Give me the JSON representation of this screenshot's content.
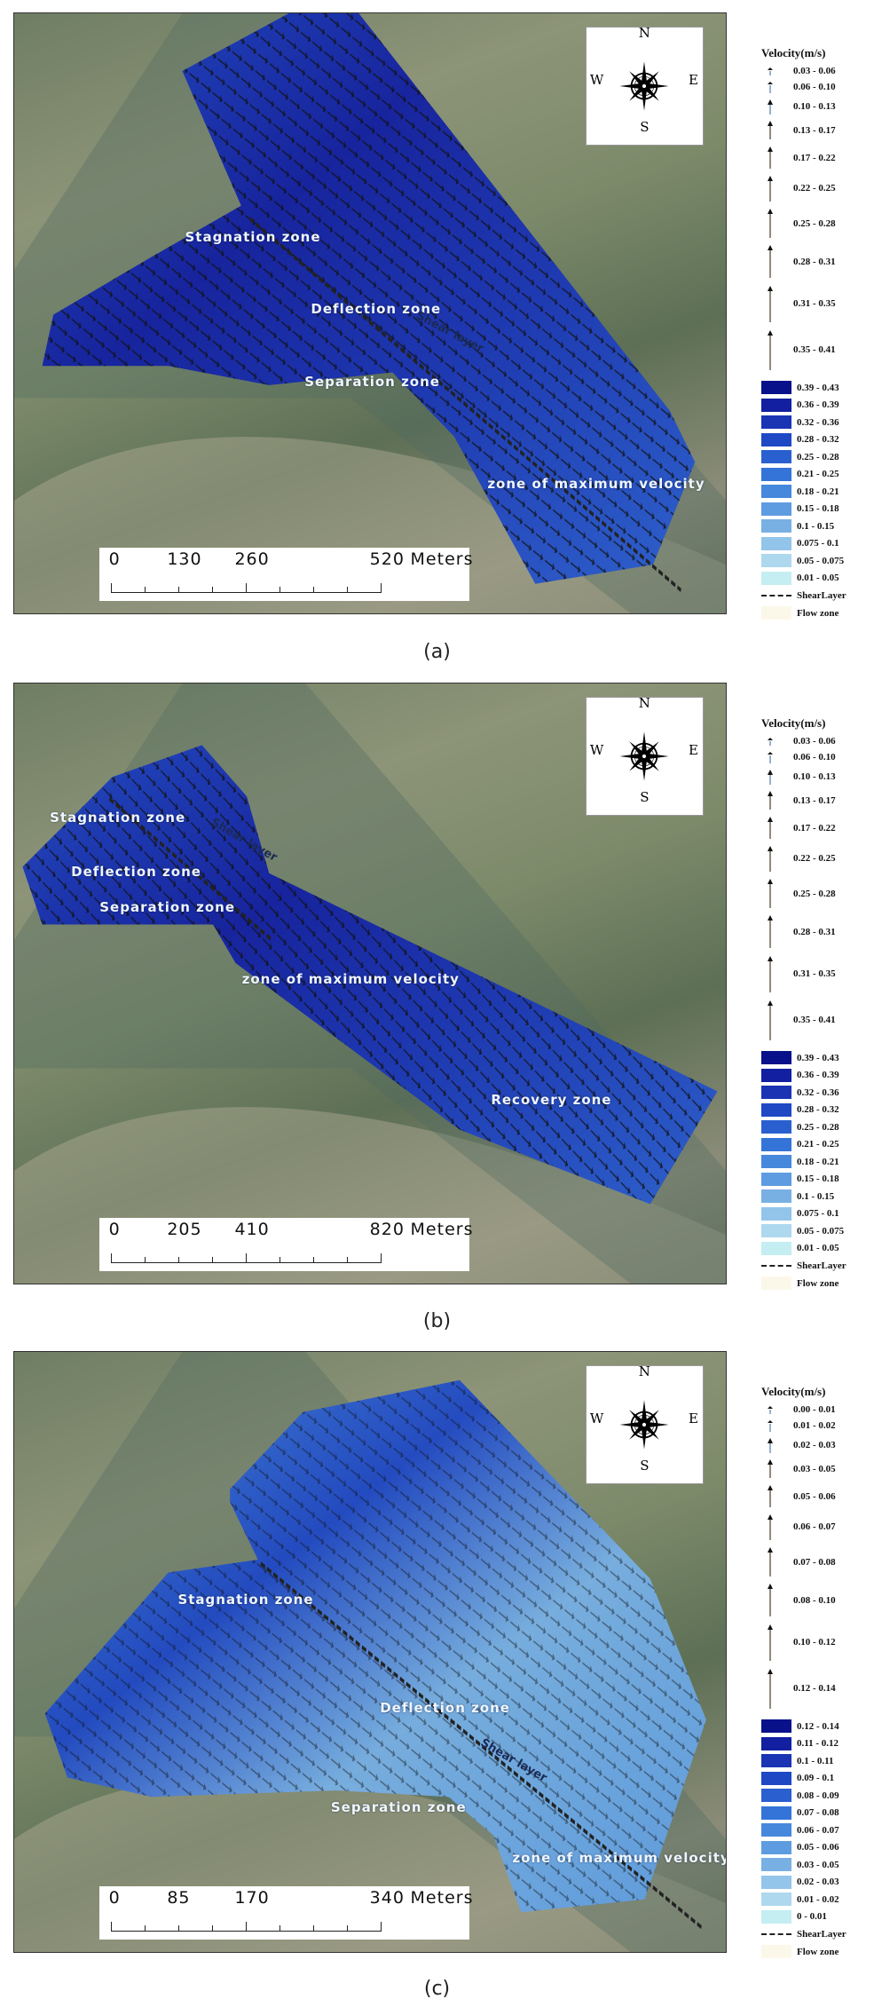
{
  "panels": [
    {
      "caption": "(a)",
      "zones": [
        "Stagnation zone",
        "Deflection zone",
        "Separation zone",
        "zone of maximum velocity"
      ],
      "shear_label": "Shear layer",
      "compass": {
        "n": "N",
        "s": "S",
        "e": "E",
        "w": "W"
      },
      "scale": {
        "ticks": [
          "0",
          "130",
          "260",
          "520"
        ],
        "unit": "Meters"
      },
      "legend": {
        "title": "Velocity(m/s)",
        "arrow_classes": [
          "0.03 - 0.06",
          "0.06 - 0.10",
          "0.10 - 0.13",
          "0.13 - 0.17",
          "0.17 - 0.22",
          "0.22 - 0.25",
          "0.25 - 0.28",
          "0.28 - 0.31",
          "0.31 - 0.35",
          "0.35 - 0.41"
        ],
        "fill_classes": [
          "0.39 - 0.43",
          "0.36 - 0.39",
          "0.32 - 0.36",
          "0.28 - 0.32",
          "0.25 - 0.28",
          "0.21 - 0.25",
          "0.18 - 0.21",
          "0.15 - 0.18",
          "0.1 - 0.15",
          "0.075 - 0.1",
          "0.05 - 0.075",
          "0.01 - 0.05"
        ],
        "shear_layer": "ShearLayer",
        "flow_zone": "Flow zone"
      }
    },
    {
      "caption": "(b)",
      "zones": [
        "Stagnation zone",
        "Deflection zone",
        "Separation zone",
        "zone of maximum velocity",
        "Recovery zone"
      ],
      "shear_label": "Shear layer",
      "compass": {
        "n": "N",
        "s": "S",
        "e": "E",
        "w": "W"
      },
      "scale": {
        "ticks": [
          "0",
          "205",
          "410",
          "820"
        ],
        "unit": "Meters"
      },
      "legend": {
        "title": "Velocity(m/s)",
        "arrow_classes": [
          "0.03 - 0.06",
          "0.06 - 0.10",
          "0.10 - 0.13",
          "0.13 - 0.17",
          "0.17 - 0.22",
          "0.22 - 0.25",
          "0.25 - 0.28",
          "0.28 - 0.31",
          "0.31 - 0.35",
          "0.35 - 0.41"
        ],
        "fill_classes": [
          "0.39 - 0.43",
          "0.36 - 0.39",
          "0.32 - 0.36",
          "0.28 - 0.32",
          "0.25 - 0.28",
          "0.21 - 0.25",
          "0.18 - 0.21",
          "0.15 - 0.18",
          "0.1 - 0.15",
          "0.075 - 0.1",
          "0.05 - 0.075",
          "0.01 - 0.05"
        ],
        "shear_layer": "ShearLayer",
        "flow_zone": "Flow zone"
      }
    },
    {
      "caption": "(c)",
      "zones": [
        "Stagnation zone",
        "Deflection zone",
        "Separation zone",
        "zone of maximum velocity"
      ],
      "shear_label": "Shear layer",
      "compass": {
        "n": "N",
        "s": "S",
        "e": "E",
        "w": "W"
      },
      "scale": {
        "ticks": [
          "0",
          "85",
          "170",
          "340"
        ],
        "unit": "Meters"
      },
      "legend": {
        "title": "Velocity(m/s)",
        "arrow_classes": [
          "0.00 - 0.01",
          "0.01 - 0.02",
          "0.02 - 0.03",
          "0.03 - 0.05",
          "0.05 - 0.06",
          "0.06 - 0.07",
          "0.07 - 0.08",
          "0.08 - 0.10",
          "0.10 - 0.12",
          "0.12 - 0.14"
        ],
        "fill_classes": [
          "0.12 - 0.14",
          "0.11 - 0.12",
          "0.1 - 0.11",
          "0.09 - 0.1",
          "0.08 - 0.09",
          "0.07 - 0.08",
          "0.06 - 0.07",
          "0.05 - 0.06",
          "0.03 - 0.05",
          "0.02 - 0.03",
          "0.01 - 0.02",
          "0 - 0.01"
        ],
        "shear_layer": "ShearLayer",
        "flow_zone": "Flow zone"
      }
    }
  ],
  "colors": {
    "fill_ramp": [
      "#08108a",
      "#121fa0",
      "#1a34b4",
      "#1f48c4",
      "#2a5fd0",
      "#3474d8",
      "#4688dc",
      "#5d9ce0",
      "#78b0e4",
      "#93c4ea",
      "#aed8ee",
      "#c4eef2"
    ],
    "flow_zone": "#fbf8ea",
    "shear_layer": "#222222"
  }
}
